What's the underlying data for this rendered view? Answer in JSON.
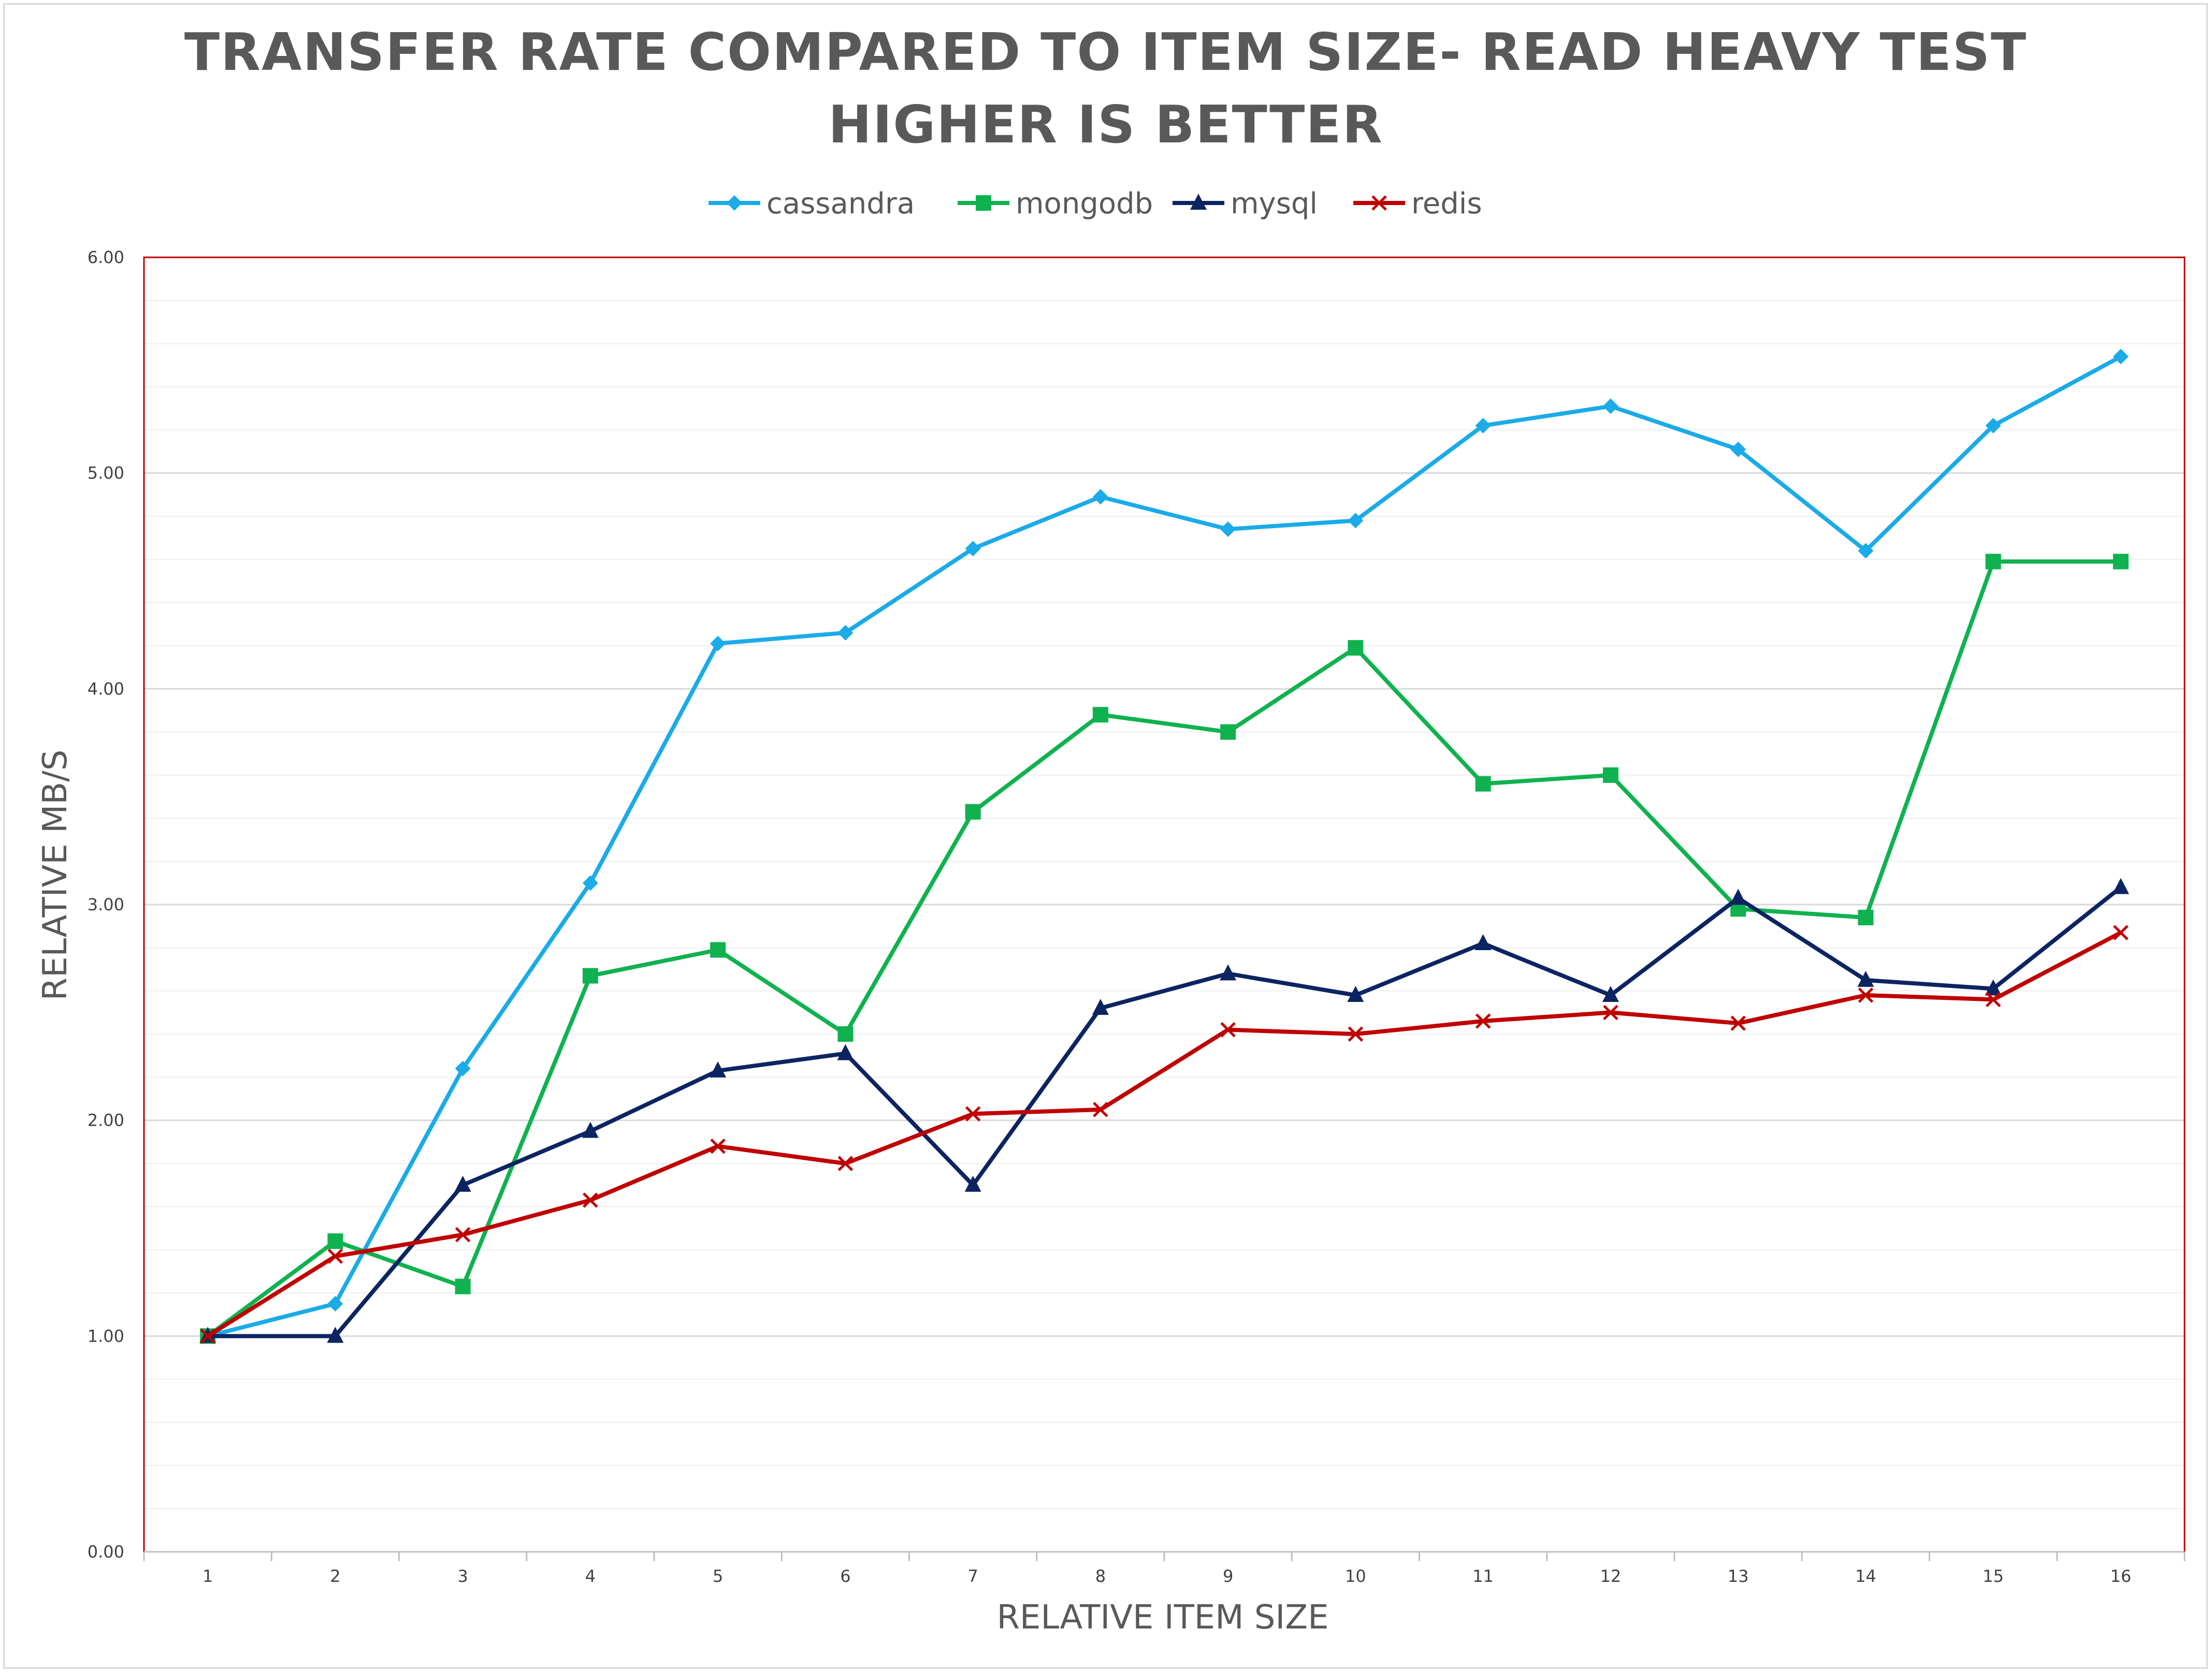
{
  "chart_data": {
    "type": "line",
    "title": "TRANSFER RATE COMPARED TO ITEM SIZE- READ HEAVY TEST",
    "subtitle": "HIGHER IS BETTER",
    "xlabel": "RELATIVE ITEM SIZE",
    "ylabel": "RELATIVE MB/S",
    "x": [
      1,
      2,
      3,
      4,
      5,
      6,
      7,
      8,
      9,
      10,
      11,
      12,
      13,
      14,
      15,
      16
    ],
    "x_tick_labels": [
      "1",
      "2",
      "3",
      "4",
      "5",
      "6",
      "7",
      "8",
      "9",
      "10",
      "11",
      "12",
      "13",
      "14",
      "15",
      "16"
    ],
    "ylim": [
      0,
      6
    ],
    "y_tick_labels": [
      "0.00",
      "1.00",
      "2.00",
      "3.00",
      "4.00",
      "5.00",
      "6.00"
    ],
    "grid": true,
    "legend_position": "top",
    "series": [
      {
        "name": "cassandra",
        "color": "#1aabe8",
        "marker": "diamond",
        "values": [
          1.0,
          1.15,
          2.24,
          3.1,
          4.21,
          4.26,
          4.65,
          4.89,
          4.74,
          4.78,
          5.22,
          5.31,
          5.11,
          4.64,
          5.22,
          5.54
        ]
      },
      {
        "name": "mongodb",
        "color": "#0fb24f",
        "marker": "square",
        "values": [
          1.0,
          1.44,
          1.23,
          2.67,
          2.79,
          2.4,
          3.43,
          3.88,
          3.8,
          4.19,
          3.56,
          3.6,
          2.98,
          2.94,
          4.59,
          4.59
        ]
      },
      {
        "name": "mysql",
        "color": "#0c2461",
        "marker": "triangle",
        "values": [
          1.0,
          1.0,
          1.7,
          1.95,
          2.23,
          2.31,
          1.7,
          2.52,
          2.68,
          2.58,
          2.82,
          2.58,
          3.03,
          2.65,
          2.61,
          3.08
        ]
      },
      {
        "name": "redis",
        "color": "#c00000",
        "marker": "x",
        "values": [
          1.0,
          1.37,
          1.47,
          1.63,
          1.88,
          1.8,
          2.03,
          2.05,
          2.42,
          2.4,
          2.46,
          2.5,
          2.45,
          2.58,
          2.56,
          2.87
        ]
      }
    ]
  }
}
